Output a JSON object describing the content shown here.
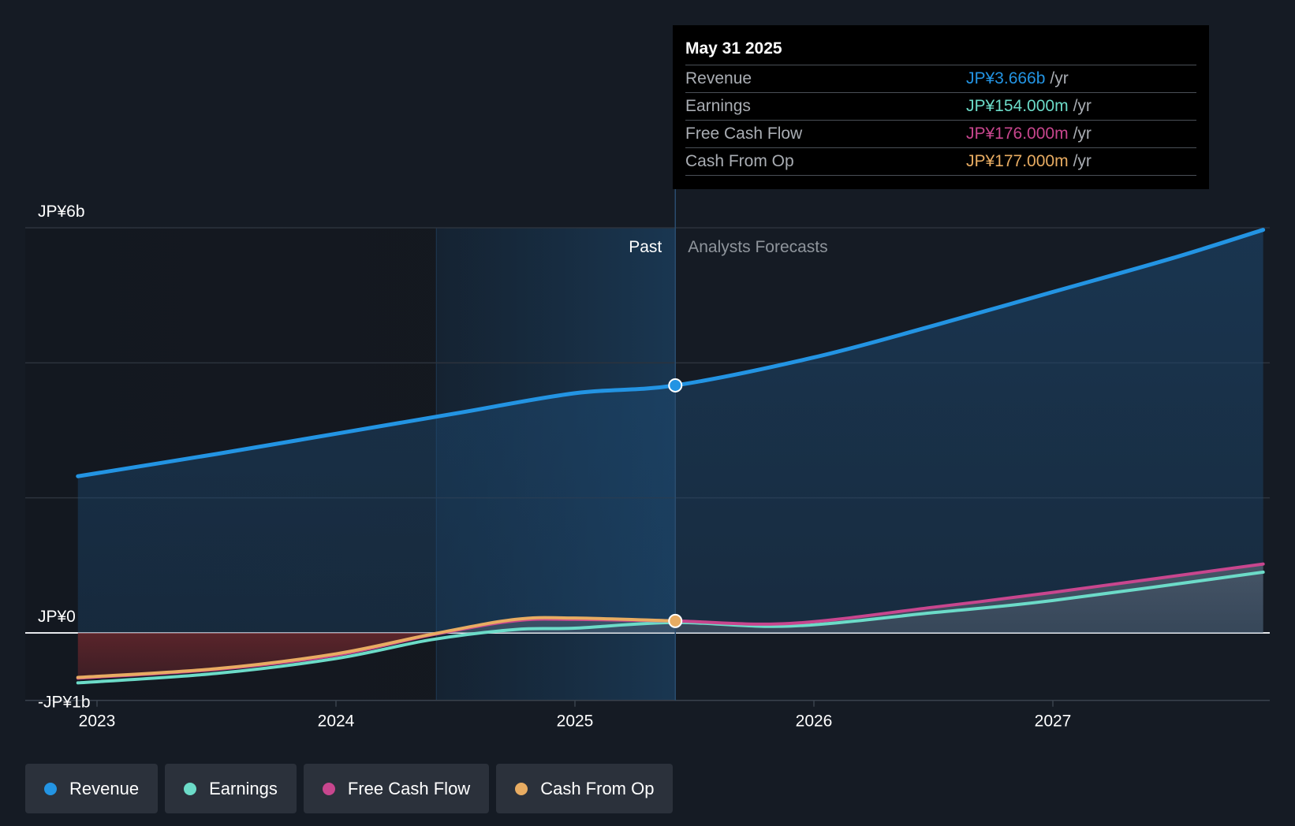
{
  "chart_data": {
    "type": "line",
    "currency_unit": "JPY billions",
    "y_ticks": [
      {
        "value": 6,
        "label": "JP¥6b"
      },
      {
        "value": 0,
        "label": "JP¥0"
      },
      {
        "value": -1,
        "label": "-JP¥1b"
      }
    ],
    "x_ticks": [
      {
        "value": 2023,
        "label": "2023"
      },
      {
        "value": 2024,
        "label": "2024"
      },
      {
        "value": 2025,
        "label": "2025"
      },
      {
        "value": 2026,
        "label": "2026"
      },
      {
        "value": 2027,
        "label": "2027"
      }
    ],
    "xlim": [
      2022.7,
      2027.9
    ],
    "ylim": [
      -1,
      6
    ],
    "divider_labels": {
      "past": "Past",
      "forecast": "Analysts Forecasts"
    },
    "past_end": 2025.42,
    "highlight_start": 2024.42,
    "series": [
      {
        "name": "Revenue",
        "color": "#2394e3",
        "points": [
          [
            2022.92,
            2.32
          ],
          [
            2023.5,
            2.65
          ],
          [
            2024.0,
            2.95
          ],
          [
            2024.5,
            3.25
          ],
          [
            2025.0,
            3.55
          ],
          [
            2025.42,
            3.666
          ],
          [
            2026.0,
            4.08
          ],
          [
            2026.5,
            4.55
          ],
          [
            2027.0,
            5.05
          ],
          [
            2027.5,
            5.55
          ],
          [
            2027.88,
            5.97
          ]
        ]
      },
      {
        "name": "Earnings",
        "color": "#6cdbc8",
        "points": [
          [
            2022.92,
            -0.74
          ],
          [
            2023.5,
            -0.6
          ],
          [
            2024.0,
            -0.38
          ],
          [
            2024.4,
            -0.1
          ],
          [
            2024.75,
            0.05
          ],
          [
            2025.0,
            0.07
          ],
          [
            2025.42,
            0.154
          ],
          [
            2025.9,
            0.1
          ],
          [
            2026.5,
            0.3
          ],
          [
            2027.0,
            0.48
          ],
          [
            2027.88,
            0.9
          ]
        ]
      },
      {
        "name": "Free Cash Flow",
        "color": "#c8468e",
        "points": [
          [
            2022.92,
            -0.67
          ],
          [
            2023.5,
            -0.54
          ],
          [
            2024.0,
            -0.33
          ],
          [
            2024.4,
            -0.03
          ],
          [
            2024.75,
            0.18
          ],
          [
            2025.0,
            0.2
          ],
          [
            2025.42,
            0.176
          ],
          [
            2025.9,
            0.14
          ],
          [
            2026.5,
            0.38
          ],
          [
            2027.0,
            0.6
          ],
          [
            2027.88,
            1.02
          ]
        ]
      },
      {
        "name": "Cash From Op",
        "color": "#e8ac62",
        "points": [
          [
            2022.92,
            -0.66
          ],
          [
            2023.5,
            -0.53
          ],
          [
            2024.0,
            -0.31
          ],
          [
            2024.4,
            -0.02
          ],
          [
            2024.75,
            0.2
          ],
          [
            2025.0,
            0.22
          ],
          [
            2025.42,
            0.177
          ]
        ]
      }
    ]
  },
  "tooltip": {
    "date": "May 31 2025",
    "unit": "/yr",
    "rows": [
      {
        "label": "Revenue",
        "value": "JP¥3.666b",
        "color": "#2394e3"
      },
      {
        "label": "Earnings",
        "value": "JP¥154.000m",
        "color": "#6cdbc8"
      },
      {
        "label": "Free Cash Flow",
        "value": "JP¥176.000m",
        "color": "#c8468e"
      },
      {
        "label": "Cash From Op",
        "value": "JP¥177.000m",
        "color": "#e8ac62"
      }
    ]
  },
  "legend": [
    {
      "label": "Revenue",
      "color": "#2394e3"
    },
    {
      "label": "Earnings",
      "color": "#6cdbc8"
    },
    {
      "label": "Free Cash Flow",
      "color": "#c8468e"
    },
    {
      "label": "Cash From Op",
      "color": "#e8ac62"
    }
  ]
}
